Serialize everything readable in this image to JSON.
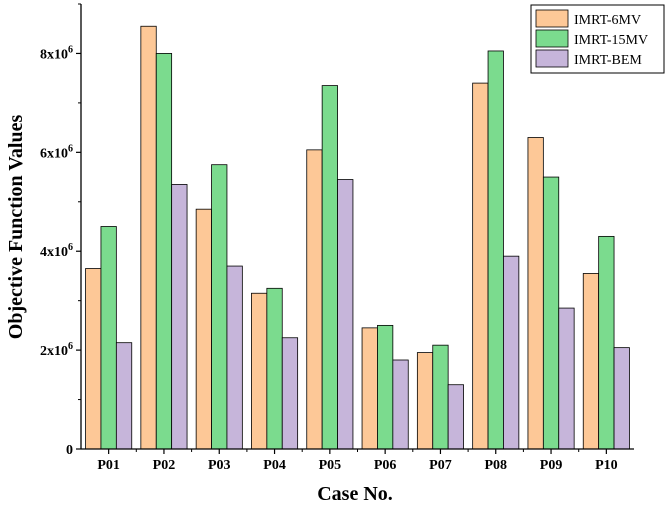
{
  "chart_data": {
    "type": "bar",
    "title": "",
    "xlabel": "Case No.",
    "ylabel": "Objective Function Values",
    "categories": [
      "P01",
      "P02",
      "P03",
      "P04",
      "P05",
      "P06",
      "P07",
      "P08",
      "P09",
      "P10"
    ],
    "series": [
      {
        "name": "IMRT-6MV",
        "color": "#FDC897",
        "values": [
          3650000,
          8550000,
          4850000,
          3150000,
          6050000,
          2450000,
          1950000,
          7400000,
          6300000,
          3550000
        ]
      },
      {
        "name": "IMRT-15MV",
        "color": "#7BDB8E",
        "values": [
          4500000,
          8000000,
          5750000,
          3250000,
          7350000,
          2500000,
          2100000,
          8050000,
          5500000,
          4300000
        ]
      },
      {
        "name": "IMRT-BEM",
        "color": "#C6B5DA",
        "values": [
          2150000,
          5350000,
          3700000,
          2250000,
          5450000,
          1800000,
          1300000,
          3900000,
          2850000,
          2050000
        ]
      }
    ],
    "ylim": [
      0,
      9000000
    ],
    "yticks": [
      {
        "value": 0,
        "base": "0",
        "exp": ""
      },
      {
        "value": 2000000,
        "base": "2x10",
        "exp": "6"
      },
      {
        "value": 4000000,
        "base": "4x10",
        "exp": "6"
      },
      {
        "value": 6000000,
        "base": "6x10",
        "exp": "6"
      },
      {
        "value": 8000000,
        "base": "8x10",
        "exp": "6"
      }
    ],
    "legend_position": "top-right",
    "grid": false
  }
}
